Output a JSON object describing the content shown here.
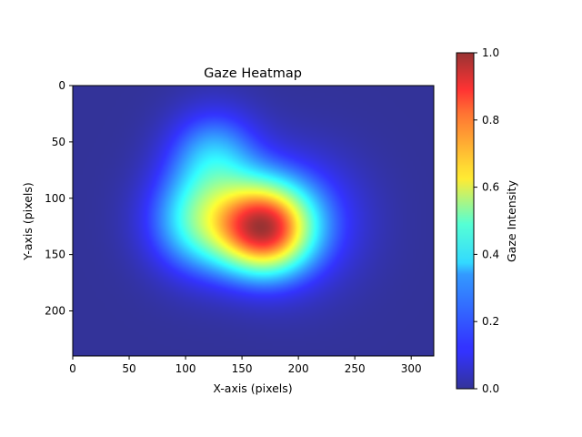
{
  "chart_data": {
    "type": "heatmap",
    "title": "Gaze Heatmap",
    "xlabel": "X-axis (pixels)",
    "ylabel": "Y-axis (pixels)",
    "xlim": [
      0,
      320
    ],
    "ylim": [
      240,
      0
    ],
    "x_ticks": [
      0,
      50,
      100,
      150,
      200,
      250,
      300
    ],
    "y_ticks": [
      0,
      50,
      100,
      150,
      200
    ],
    "colorbar": {
      "label": "Gaze Intensity",
      "range": [
        0.0,
        1.0
      ],
      "ticks": [
        "0.0",
        "0.2",
        "0.4",
        "0.6",
        "0.8",
        "1.0"
      ],
      "colormap": "jet"
    },
    "hotspots": [
      {
        "x": 170,
        "y": 127,
        "intensity": 1.0,
        "spread": 28
      },
      {
        "x": 115,
        "y": 120,
        "intensity": 0.55,
        "spread": 32
      },
      {
        "x": 125,
        "y": 60,
        "intensity": 0.33,
        "spread": 28
      },
      {
        "x": 200,
        "y": 120,
        "intensity": 0.25,
        "spread": 40
      }
    ],
    "grid": false
  }
}
